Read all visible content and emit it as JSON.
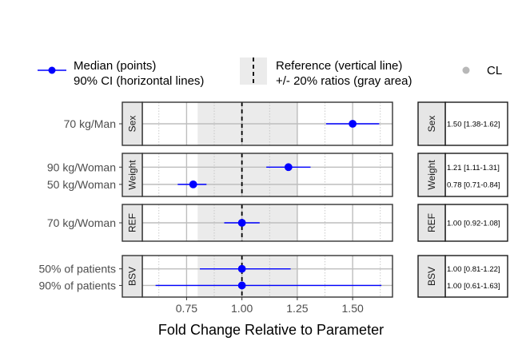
{
  "chart_data": {
    "type": "forest",
    "xlabel": "Fold Change Relative to Parameter",
    "xlim": [
      0.55,
      1.68
    ],
    "x_ticks": [
      0.75,
      1.0,
      1.25,
      1.5
    ],
    "x_tick_labels": [
      "0.75",
      "1.00",
      "1.25",
      "1.50"
    ],
    "reference": {
      "value": 1.0,
      "band": [
        0.8,
        1.25
      ]
    },
    "legend": {
      "position": "top",
      "median_label_1": "Median (points)",
      "median_label_2": "90% CI (horizontal lines)",
      "reference_label_1": "Reference (vertical line)",
      "reference_label_2": "+/- 20% ratios (gray area)",
      "cl_label": "CL"
    },
    "colors": {
      "series": "#0000ff",
      "point_fill": "#0000ff",
      "band": "#ebebeb",
      "grid": "#bebebe",
      "strip": "#e6e6e6",
      "cl_legend": "#b8b8b8"
    },
    "panels": [
      {
        "strip": "Sex",
        "rows": [
          {
            "label": "70 kg/Man",
            "median": 1.5,
            "lower": 1.38,
            "upper": 1.62,
            "text": "1.50 [1.38-1.62]"
          }
        ]
      },
      {
        "strip": "Weight",
        "rows": [
          {
            "label": "90 kg/Woman",
            "median": 1.21,
            "lower": 1.11,
            "upper": 1.31,
            "text": "1.21 [1.11-1.31]"
          },
          {
            "label": "50 kg/Woman",
            "median": 0.78,
            "lower": 0.71,
            "upper": 0.84,
            "text": "0.78 [0.71-0.84]"
          }
        ]
      },
      {
        "strip": "REF",
        "rows": [
          {
            "label": "70 kg/Woman",
            "median": 1.0,
            "lower": 0.92,
            "upper": 1.08,
            "text": "1.00 [0.92-1.08]"
          }
        ]
      },
      {
        "strip": "BSV",
        "rows": [
          {
            "label": "50% of patients",
            "median": 1.0,
            "lower": 0.81,
            "upper": 1.22,
            "text": "1.00 [0.81-1.22]"
          },
          {
            "label": "90% of patients",
            "median": 1.0,
            "lower": 0.61,
            "upper": 1.63,
            "text": "1.00 [0.61-1.63]"
          }
        ]
      }
    ]
  }
}
